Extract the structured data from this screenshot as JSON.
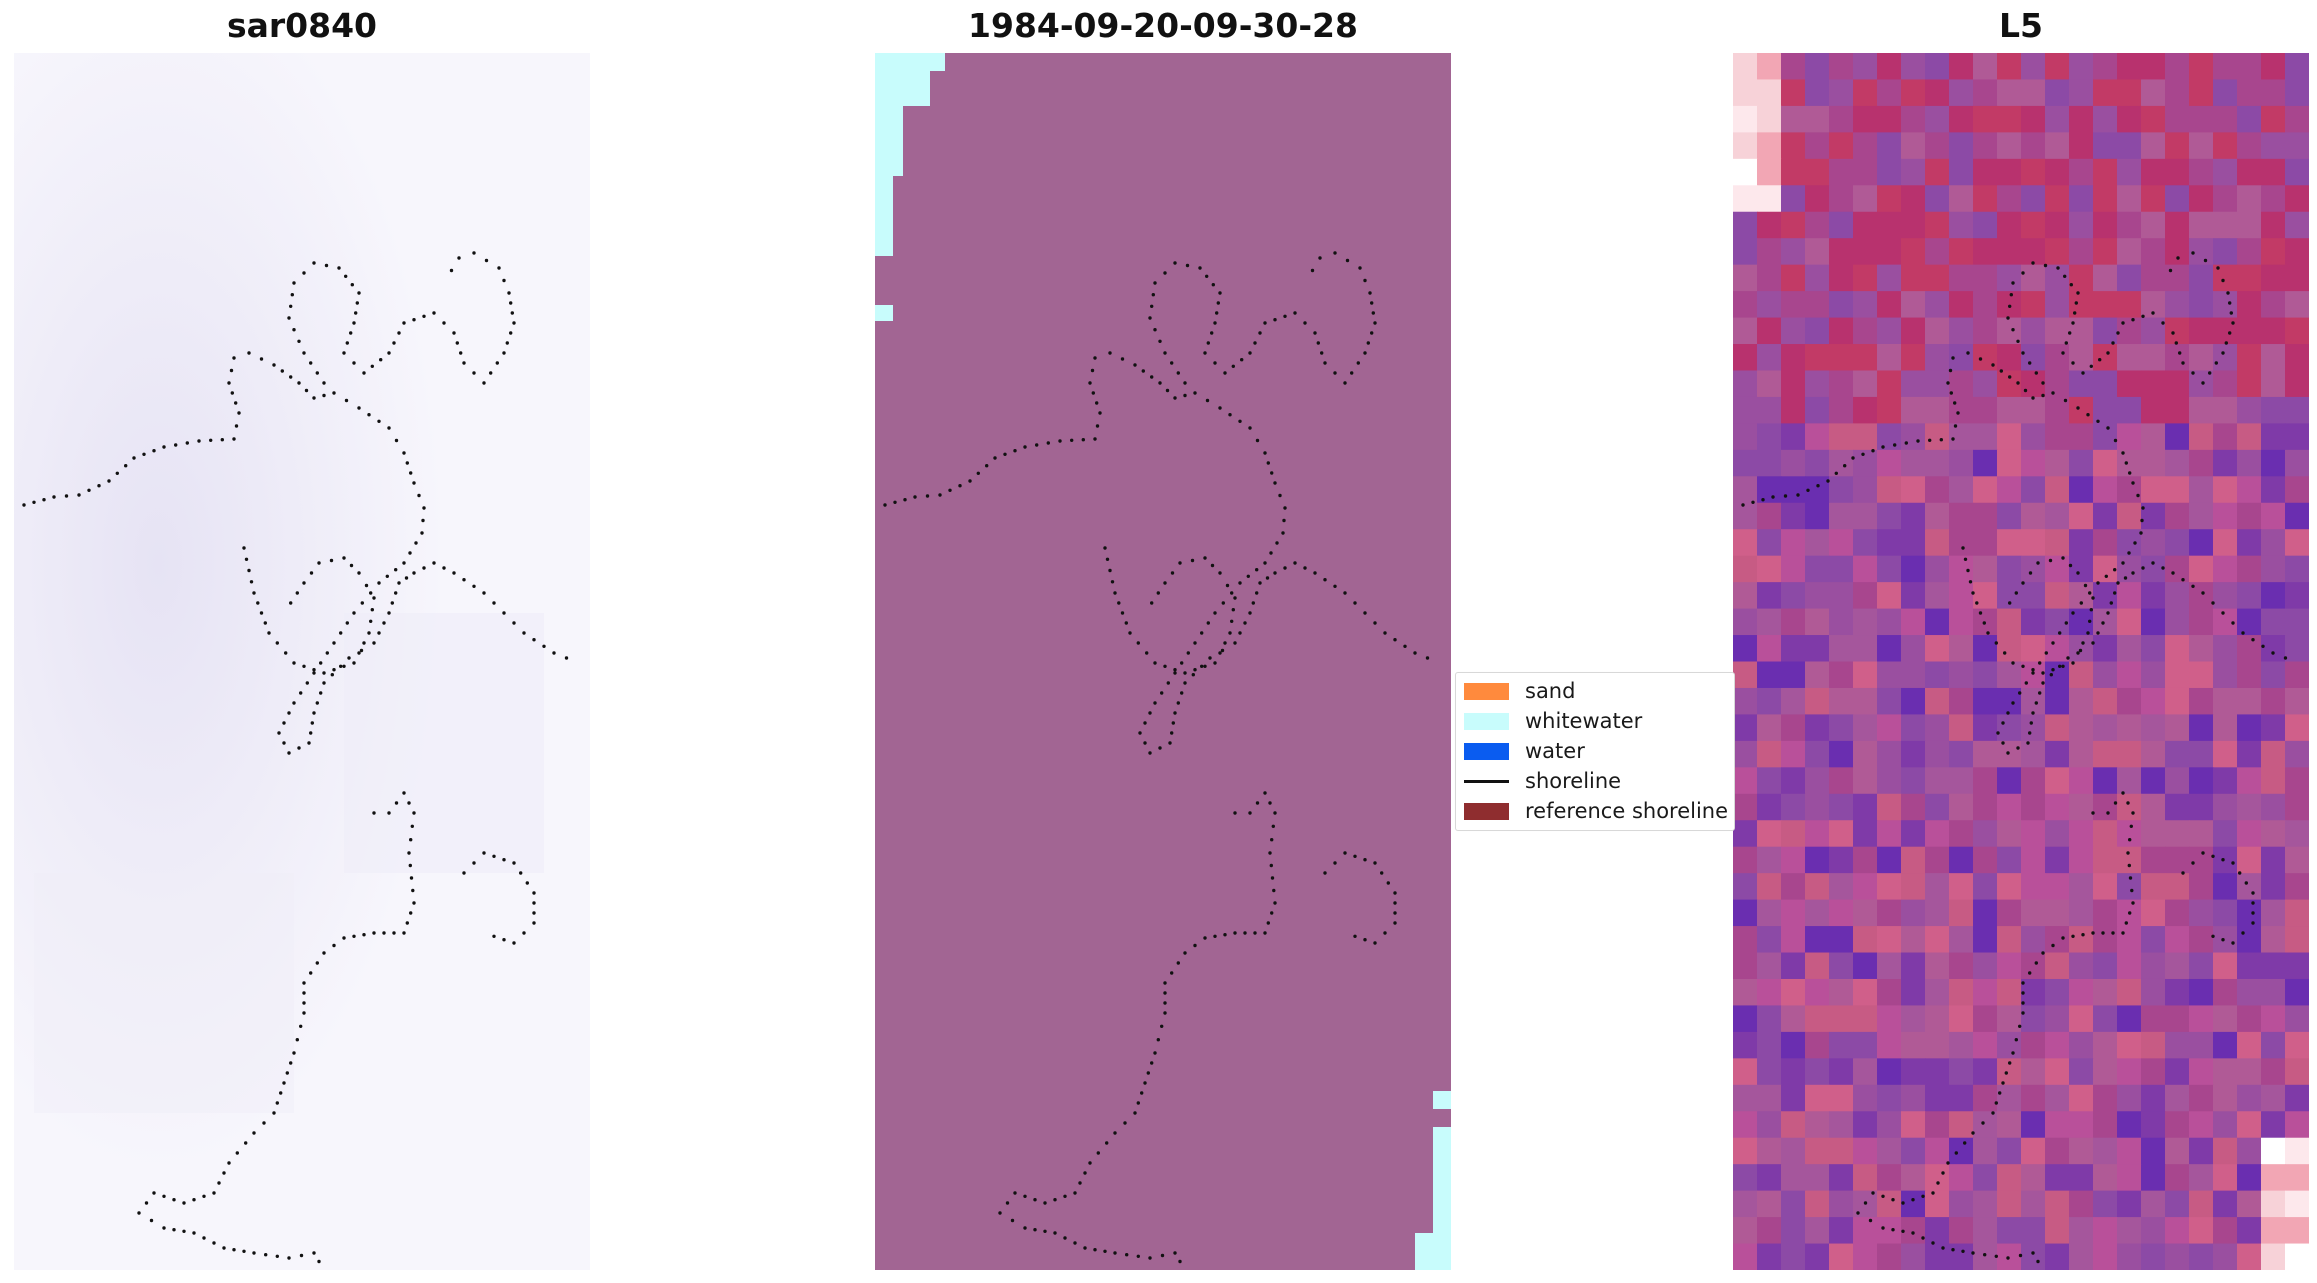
{
  "panels": {
    "left_title": "sar0840",
    "center_title": "1984-09-20-09-30-28",
    "right_title": "L5"
  },
  "legend": {
    "items": [
      {
        "label": "sand",
        "kind": "patch",
        "color": "#ff8a3d"
      },
      {
        "label": "whitewater",
        "kind": "patch",
        "color": "#c8fcfc"
      },
      {
        "label": "water",
        "kind": "patch",
        "color": "#0a5cf0"
      },
      {
        "label": "shoreline",
        "kind": "line",
        "color": "#111111"
      },
      {
        "label": "reference shoreline",
        "kind": "patch",
        "color": "#8f2d2f"
      }
    ]
  },
  "colors": {
    "classified_background": "#a26593",
    "whitewater": "#c8fcfc",
    "shoreline_dots": "#111111",
    "gray_background": "#f2f0fa"
  },
  "icons": {
    "shoreline": "dotted-black-line"
  }
}
